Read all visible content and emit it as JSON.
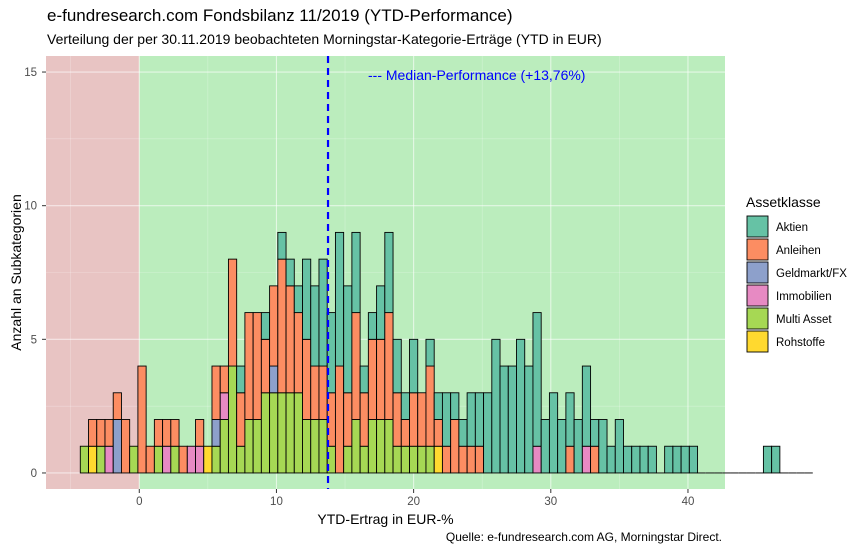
{
  "title": "e-fundresearch.com Fondsbilanz 11/2019 (YTD-Performance)",
  "subtitle": "Verteilung der per 30.11.2019 beobachteten Morningstar-Kategorie-Erträge (YTD in EUR)",
  "caption": "Quelle: e-fundresearch.com AG, Morningstar Direct.",
  "colors": {
    "negative_region": "#e8c4c3",
    "positive_region": "#bbedbd",
    "median_line": "#0000ff",
    "bar_outline": "#000000"
  },
  "chart_data": {
    "type": "bar",
    "subtype": "stacked histogram",
    "xlabel": "YTD-Ertrag in EUR-%",
    "ylabel": "Anzahl an Subkategorien",
    "xlim": [
      -6.8,
      42.7
    ],
    "ylim": [
      -0.6,
      15.6
    ],
    "x_ticks": [
      0,
      10,
      20,
      30,
      40
    ],
    "y_ticks": [
      0,
      5,
      10,
      15
    ],
    "bin_width": 0.6,
    "background_split_at": 0,
    "grid": true,
    "median": {
      "value": 13.76,
      "label": "--- Median-Performance (+13,76%)"
    },
    "legend": {
      "title": "Assetklasse",
      "position": "right"
    },
    "series": [
      {
        "name": "Aktien",
        "color": "#66c2a5",
        "counts": [
          0,
          0,
          0,
          0,
          0,
          0,
          0,
          0,
          0,
          0,
          0,
          0,
          0,
          0,
          0,
          0,
          0,
          0,
          0,
          1,
          0,
          0,
          1,
          0,
          1,
          1,
          1,
          3,
          3,
          4,
          3,
          5,
          4,
          3,
          1,
          1,
          2,
          3,
          2,
          1,
          2,
          0,
          1,
          1,
          2,
          1,
          1,
          2,
          2,
          3,
          5,
          4,
          4,
          5,
          4,
          5,
          2,
          3,
          2,
          2,
          2,
          3,
          1,
          2,
          1,
          2,
          1,
          1,
          1,
          1,
          0,
          1,
          1,
          1,
          1,
          0,
          0,
          0,
          0,
          0,
          0,
          0,
          0,
          1,
          1,
          0,
          0,
          0,
          0
        ]
      },
      {
        "name": "Anleihen",
        "color": "#fc8d62",
        "counts": [
          0,
          1,
          1,
          1,
          1,
          2,
          0,
          4,
          1,
          1,
          1,
          1,
          1,
          0,
          1,
          0,
          2,
          1,
          4,
          2,
          4,
          4,
          2,
          3,
          5,
          4,
          3,
          3,
          2,
          2,
          2,
          4,
          2,
          4,
          2,
          3,
          3,
          4,
          2,
          1,
          2,
          2,
          3,
          1,
          1,
          2,
          1,
          1,
          1,
          0,
          0,
          0,
          0,
          0,
          0,
          0,
          0,
          0,
          0,
          1,
          0,
          0,
          1,
          0,
          0,
          0,
          0,
          0,
          0,
          0,
          0,
          0,
          0,
          0,
          0,
          0,
          0,
          0,
          0,
          0,
          0,
          0,
          0,
          0,
          0,
          0,
          0,
          0,
          0
        ]
      },
      {
        "name": "Geldmarkt/FX",
        "color": "#8da0cb",
        "counts": [
          0,
          0,
          0,
          0,
          2,
          0,
          0,
          0,
          0,
          0,
          0,
          0,
          0,
          0,
          0,
          0,
          1,
          0,
          0,
          0,
          0,
          0,
          0,
          1,
          0,
          0,
          0,
          0,
          0,
          0,
          0,
          0,
          0,
          0,
          0,
          0,
          0,
          0,
          0,
          0,
          0,
          0,
          0,
          0,
          0,
          0,
          0,
          0,
          0,
          0,
          0,
          0,
          0,
          0,
          0,
          0,
          0,
          0,
          0,
          0,
          0,
          0,
          0,
          0,
          0,
          0,
          0,
          0,
          0,
          0,
          0,
          0,
          0,
          0,
          0,
          0,
          0,
          0,
          0,
          0,
          0,
          0,
          0,
          0,
          0,
          0,
          0,
          0,
          0
        ]
      },
      {
        "name": "Immobilien",
        "color": "#e78ac3",
        "counts": [
          0,
          0,
          0,
          1,
          0,
          0,
          0,
          0,
          0,
          0,
          1,
          0,
          0,
          1,
          1,
          0,
          0,
          1,
          0,
          0,
          0,
          0,
          0,
          0,
          0,
          0,
          0,
          0,
          0,
          0,
          0,
          0,
          0,
          0,
          0,
          0,
          0,
          0,
          0,
          0,
          0,
          0,
          0,
          0,
          0,
          0,
          0,
          0,
          0,
          0,
          0,
          0,
          0,
          0,
          0,
          1,
          0,
          0,
          0,
          0,
          0,
          1,
          0,
          0,
          0,
          0,
          0,
          0,
          0,
          0,
          0,
          0,
          0,
          0,
          0,
          0,
          0,
          0,
          0,
          0,
          0,
          0,
          0,
          0,
          0,
          0,
          0,
          0,
          0
        ]
      },
      {
        "name": "Multi Asset",
        "color": "#a6d854",
        "counts": [
          1,
          0,
          1,
          0,
          0,
          0,
          1,
          0,
          0,
          1,
          0,
          1,
          0,
          0,
          0,
          0,
          1,
          2,
          4,
          1,
          2,
          2,
          3,
          3,
          3,
          3,
          3,
          2,
          2,
          2,
          1,
          0,
          1,
          2,
          1,
          2,
          2,
          2,
          1,
          1,
          1,
          1,
          1,
          0,
          0,
          0,
          0,
          0,
          0,
          0,
          0,
          0,
          0,
          0,
          0,
          0,
          0,
          0,
          0,
          0,
          0,
          0,
          0,
          0,
          0,
          0,
          0,
          0,
          0,
          0,
          0,
          0,
          0,
          0,
          0,
          0,
          0,
          0,
          0,
          0,
          0,
          0,
          0,
          0,
          0,
          0,
          0,
          0,
          0
        ]
      },
      {
        "name": "Rohstoffe",
        "color": "#ffd92f",
        "counts": [
          0,
          1,
          0,
          0,
          0,
          0,
          0,
          0,
          0,
          0,
          0,
          0,
          0,
          0,
          0,
          1,
          0,
          0,
          0,
          0,
          0,
          0,
          0,
          0,
          0,
          0,
          0,
          0,
          0,
          0,
          0,
          0,
          0,
          0,
          0,
          0,
          0,
          0,
          0,
          0,
          0,
          0,
          0,
          1,
          0,
          0,
          0,
          0,
          0,
          0,
          0,
          0,
          0,
          0,
          0,
          0,
          0,
          0,
          0,
          0,
          0,
          0,
          0,
          0,
          0,
          0,
          0,
          0,
          0,
          0,
          0,
          0,
          0,
          0,
          0,
          0,
          0,
          0,
          0,
          0,
          0,
          0,
          0,
          0,
          0,
          0,
          0,
          0,
          0
        ]
      }
    ],
    "bin_starts": [
      -4.3,
      -3.7,
      -3.1,
      -2.5,
      -1.9,
      -1.3,
      -0.7,
      -0.1,
      0.5,
      1.1,
      1.7,
      2.3,
      2.9,
      3.5,
      4.1,
      4.7,
      5.3,
      5.9,
      6.5,
      7.1,
      7.7,
      8.3,
      8.9,
      9.5,
      10.1,
      10.7,
      11.3,
      11.9,
      12.5,
      13.1,
      13.7,
      14.3,
      14.9,
      15.5,
      16.1,
      16.7,
      17.3,
      17.9,
      18.5,
      19.1,
      19.7,
      20.3,
      20.9,
      21.5,
      22.1,
      22.7,
      23.3,
      23.9,
      24.5,
      25.1,
      25.7,
      26.3,
      26.9,
      27.5,
      28.1,
      28.7,
      29.3,
      29.9,
      30.5,
      31.1,
      31.7,
      32.3,
      32.9,
      33.5,
      34.1,
      34.7,
      35.3,
      35.9,
      36.5,
      37.1,
      37.7,
      38.3,
      38.9,
      39.5,
      40.1,
      40.7,
      41.3,
      41.9,
      42.5,
      43.1,
      43.7,
      44.3,
      44.9,
      45.5,
      46.1,
      46.7,
      47.3,
      47.9,
      48.5
    ]
  }
}
